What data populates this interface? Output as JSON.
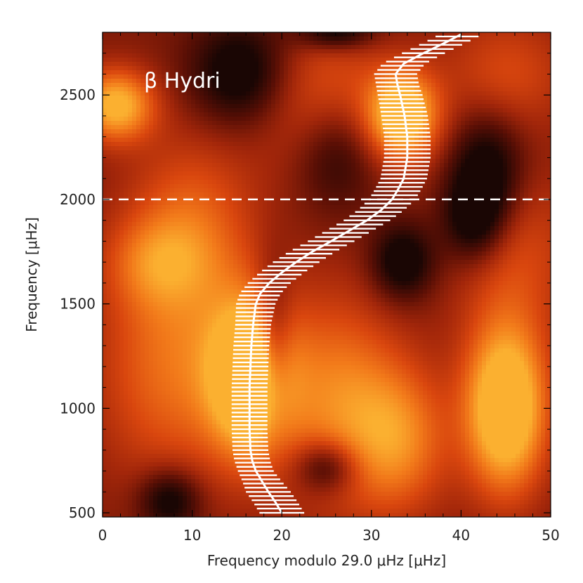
{
  "chart_data": {
    "type": "heatmap",
    "title": "",
    "annotation": "β Hydri",
    "xlabel": "Frequency modulo 29.0 μHz [μHz]",
    "ylabel": "Frequency [μHz]",
    "xlim": [
      0,
      50
    ],
    "ylim": [
      480,
      2800
    ],
    "x_ticks": [
      0,
      10,
      20,
      30,
      40,
      50
    ],
    "y_ticks": [
      500,
      1000,
      1500,
      2000,
      2500
    ],
    "colormap": [
      "#1a0604",
      "#5a0f05",
      "#a2260a",
      "#d9460e",
      "#f27a1a",
      "#fbb030"
    ],
    "reference_line": {
      "y": 2000,
      "style": "dashed",
      "color": "#ffffff"
    },
    "ridge": {
      "color": "#ffffff",
      "points": [
        {
          "y": 500,
          "x": 20.0,
          "err": 2.5
        },
        {
          "y": 550,
          "x": 19.3,
          "err": 2.5
        },
        {
          "y": 600,
          "x": 18.5,
          "err": 2.5
        },
        {
          "y": 650,
          "x": 17.8,
          "err": 2.2
        },
        {
          "y": 700,
          "x": 17.1,
          "err": 2.0
        },
        {
          "y": 750,
          "x": 16.7,
          "err": 2.0
        },
        {
          "y": 800,
          "x": 16.5,
          "err": 2.0
        },
        {
          "y": 900,
          "x": 16.4,
          "err": 2.0
        },
        {
          "y": 1000,
          "x": 16.4,
          "err": 2.0
        },
        {
          "y": 1100,
          "x": 16.4,
          "err": 2.0
        },
        {
          "y": 1200,
          "x": 16.5,
          "err": 2.0
        },
        {
          "y": 1300,
          "x": 16.6,
          "err": 2.0
        },
        {
          "y": 1400,
          "x": 16.8,
          "err": 2.0
        },
        {
          "y": 1500,
          "x": 17.1,
          "err": 2.2
        },
        {
          "y": 1550,
          "x": 17.6,
          "err": 2.3
        },
        {
          "y": 1600,
          "x": 18.6,
          "err": 2.4
        },
        {
          "y": 1650,
          "x": 20.0,
          "err": 2.5
        },
        {
          "y": 1700,
          "x": 21.6,
          "err": 2.6
        },
        {
          "y": 1750,
          "x": 23.4,
          "err": 2.6
        },
        {
          "y": 1800,
          "x": 25.5,
          "err": 2.6
        },
        {
          "y": 1850,
          "x": 27.5,
          "err": 2.6
        },
        {
          "y": 1900,
          "x": 29.5,
          "err": 2.6
        },
        {
          "y": 1950,
          "x": 31.1,
          "err": 2.6
        },
        {
          "y": 2000,
          "x": 32.3,
          "err": 2.6
        },
        {
          "y": 2050,
          "x": 33.0,
          "err": 2.6
        },
        {
          "y": 2100,
          "x": 33.6,
          "err": 2.6
        },
        {
          "y": 2200,
          "x": 34.0,
          "err": 2.6
        },
        {
          "y": 2300,
          "x": 34.0,
          "err": 2.6
        },
        {
          "y": 2400,
          "x": 33.7,
          "err": 2.6
        },
        {
          "y": 2500,
          "x": 33.2,
          "err": 2.5
        },
        {
          "y": 2550,
          "x": 32.9,
          "err": 2.4
        },
        {
          "y": 2600,
          "x": 32.7,
          "err": 2.4
        },
        {
          "y": 2650,
          "x": 33.6,
          "err": 2.4
        },
        {
          "y": 2700,
          "x": 35.8,
          "err": 2.4
        },
        {
          "y": 2750,
          "x": 38.2,
          "err": 2.4
        },
        {
          "y": 2790,
          "x": 40.0,
          "err": 2.4
        }
      ]
    },
    "heat_blobs": [
      {
        "x": 16.5,
        "y": 1150,
        "sx": 3.2,
        "sy": 260,
        "v": 1.0
      },
      {
        "x": 45.0,
        "y": 1000,
        "sx": 3.2,
        "sy": 280,
        "v": 1.0
      },
      {
        "x": 33.5,
        "y": 2400,
        "sx": 2.8,
        "sy": 150,
        "v": 0.85
      },
      {
        "x": 1.5,
        "y": 2450,
        "sx": 3.0,
        "sy": 120,
        "v": 0.75
      },
      {
        "x": 8.0,
        "y": 1200,
        "sx": 6.0,
        "sy": 400,
        "v": 0.45
      },
      {
        "x": 26.0,
        "y": 1050,
        "sx": 5.0,
        "sy": 350,
        "v": 0.5
      },
      {
        "x": 33.0,
        "y": 850,
        "sx": 4.0,
        "sy": 250,
        "v": 0.5
      },
      {
        "x": 25.0,
        "y": 2450,
        "sx": 5.0,
        "sy": 250,
        "v": 0.45
      },
      {
        "x": 10.0,
        "y": 1900,
        "sx": 5.0,
        "sy": 300,
        "v": 0.35
      },
      {
        "x": 45.0,
        "y": 2600,
        "sx": 5.0,
        "sy": 200,
        "v": 0.3
      },
      {
        "x": 46.0,
        "y": 1750,
        "sx": 5.0,
        "sy": 300,
        "v": 0.3
      },
      {
        "x": 6.0,
        "y": 1700,
        "sx": 4.0,
        "sy": 150,
        "v": 0.3
      }
    ],
    "dark_spots": [
      {
        "x": 7.5,
        "y": 560,
        "sx": 2.5,
        "sy": 110
      },
      {
        "x": 25.0,
        "y": 720,
        "sx": 2.5,
        "sy": 90
      },
      {
        "x": 33.5,
        "y": 1700,
        "sx": 2.5,
        "sy": 130
      },
      {
        "x": 15.5,
        "y": 2600,
        "sx": 4.0,
        "sy": 180
      },
      {
        "x": 26.0,
        "y": 2250,
        "sx": 3.5,
        "sy": 200
      },
      {
        "x": 43.0,
        "y": 2150,
        "sx": 3.0,
        "sy": 200
      },
      {
        "x": 41.5,
        "y": 1900,
        "sx": 2.5,
        "sy": 150
      },
      {
        "x": 19.0,
        "y": 1300,
        "sx": 1.5,
        "sy": 250
      },
      {
        "x": 26.0,
        "y": 2800,
        "sx": 3.0,
        "sy": 60
      }
    ]
  }
}
